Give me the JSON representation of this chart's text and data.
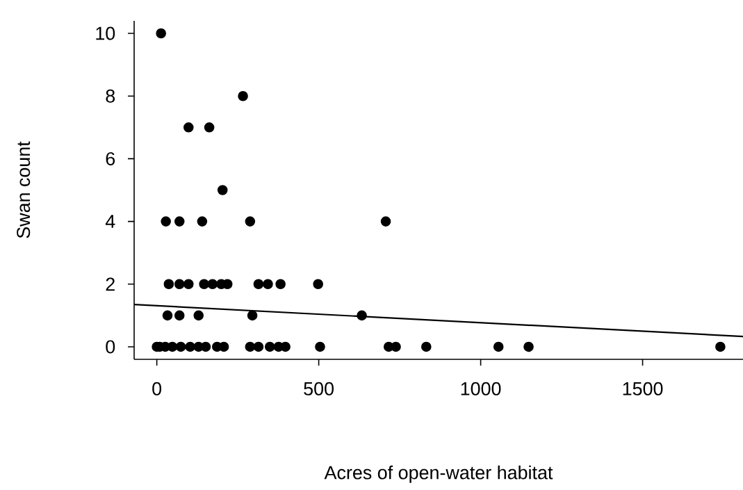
{
  "chart_data": {
    "type": "scatter",
    "xlabel": "Acres of open-water habitat",
    "ylabel": "Swan count",
    "xlim": [
      -70,
      1810
    ],
    "ylim": [
      -0.4,
      10.4
    ],
    "xticks": [
      0,
      500,
      1000,
      1500
    ],
    "yticks": [
      0,
      2,
      4,
      6,
      8,
      10
    ],
    "marker": "circle",
    "series": [
      {
        "color": "#000000",
        "x": [
          13,
          266,
          98,
          162,
          203,
          28,
          70,
          140,
          288,
          707,
          37,
          70,
          98,
          146,
          172,
          199,
          218,
          314,
          343,
          382,
          498,
          33,
          70,
          129,
          295,
          633,
          0,
          9,
          26,
          48,
          74,
          103,
          129,
          151,
          186,
          207,
          288,
          314,
          349,
          376,
          397,
          504,
          716,
          738,
          832,
          1055,
          1148,
          1740
        ],
        "values": [
          10,
          8,
          7,
          7,
          5,
          4,
          4,
          4,
          4,
          4,
          2,
          2,
          2,
          2,
          2,
          2,
          2,
          2,
          2,
          2,
          2,
          1,
          1,
          1,
          1,
          1,
          0,
          0,
          0,
          0,
          0,
          0,
          0,
          0,
          0,
          0,
          0,
          0,
          0,
          0,
          0,
          0,
          0,
          0,
          0,
          0,
          0,
          0
        ]
      },
      {
        "type": "line",
        "color": "#000000",
        "marker": "none",
        "x": [
          -70,
          1810
        ],
        "values": [
          1.35,
          0.33
        ]
      }
    ]
  }
}
